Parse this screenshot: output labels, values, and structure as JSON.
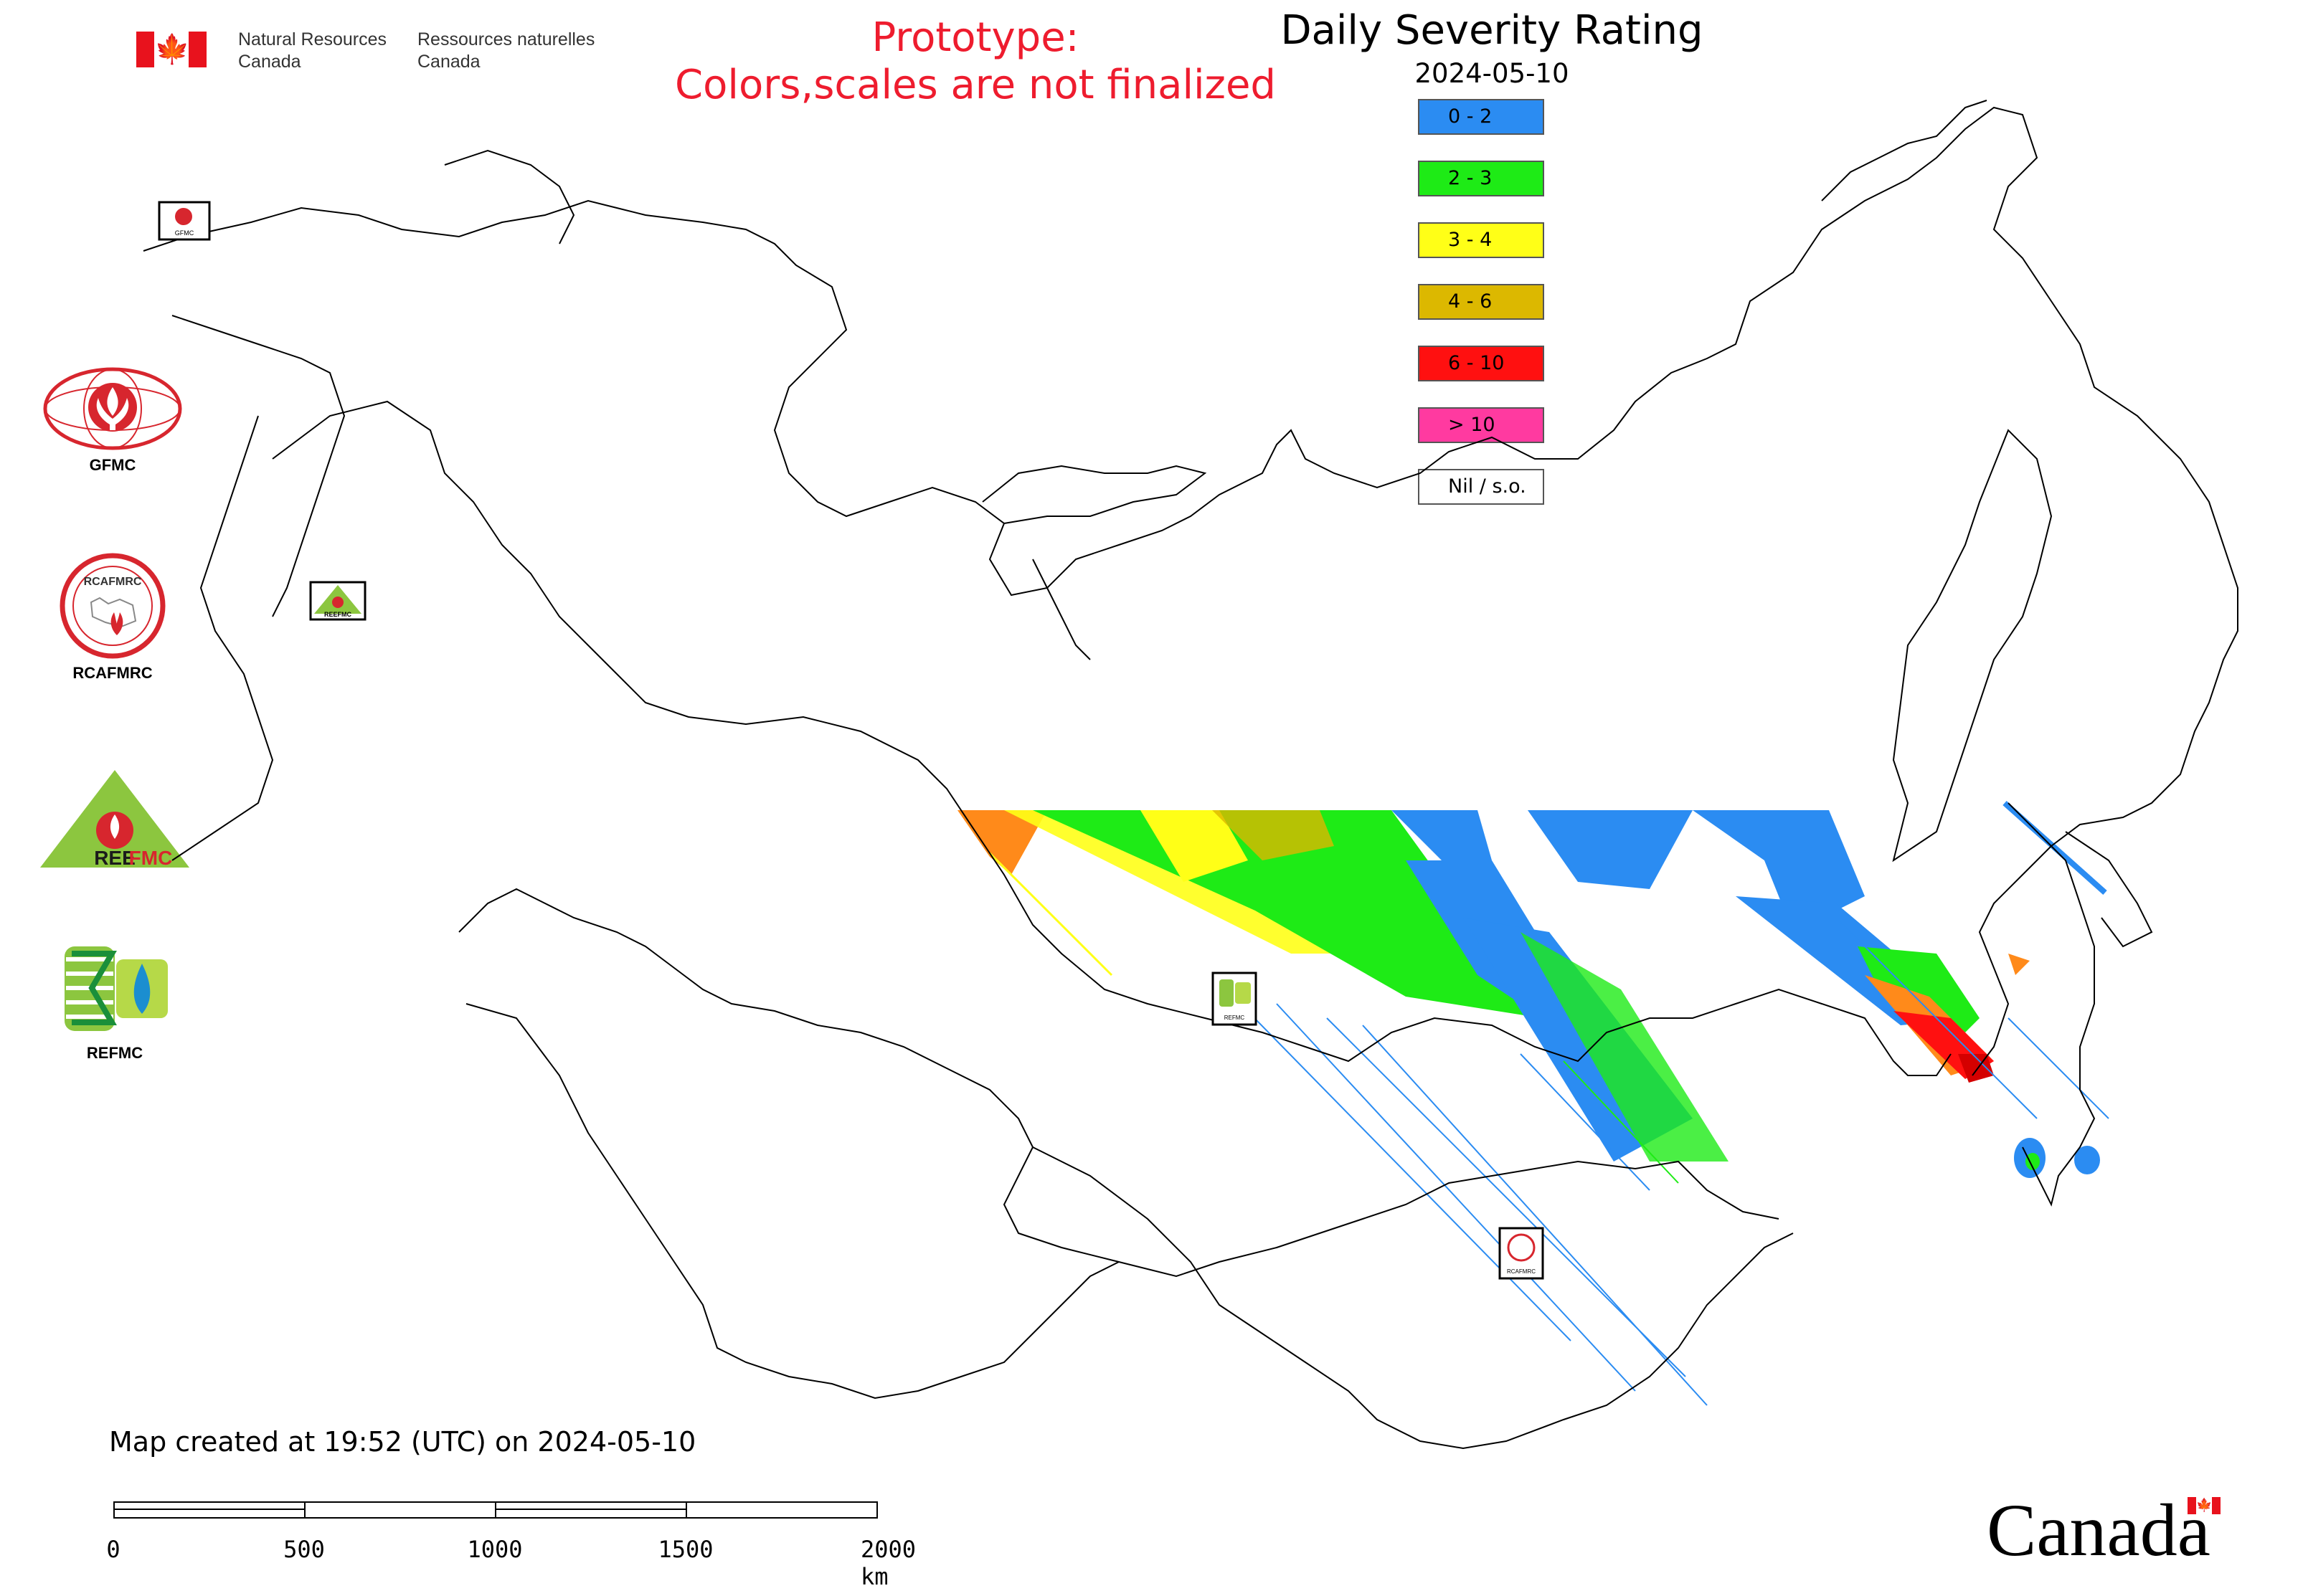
{
  "header": {
    "department_en": [
      "Natural Resources",
      "Canada"
    ],
    "department_fr": [
      "Ressources naturelles",
      "Canada"
    ],
    "prototype_note": [
      "Prototype:",
      "Colors,scales are not finalized"
    ],
    "title": "Daily Severity Rating",
    "date": "2024-05-10"
  },
  "legend": [
    {
      "label": "0 - 2",
      "color": "#2b8cf2"
    },
    {
      "label": "2 - 3",
      "color": "#1eeb16"
    },
    {
      "label": "3 - 4",
      "color": "#ffff17"
    },
    {
      "label": "4 - 6",
      "color": "#dcb800"
    },
    {
      "label": "6 - 10",
      "color": "#ff1010"
    },
    {
      "label": "> 10",
      "color": "#ff3aa0"
    },
    {
      "label": "Nil / s.o.",
      "color": "#ffffff"
    }
  ],
  "agencies": [
    {
      "name": "GFMC",
      "icon": "gfmc-logo"
    },
    {
      "name": "RCAFMRC",
      "icon": "rcafmrc-logo"
    },
    {
      "name": "REEFMC",
      "icon": "reefmc-logo"
    },
    {
      "name": "REFMC",
      "icon": "refmc-logo"
    }
  ],
  "map_marker_labels": {
    "gfmc": "GFMC",
    "reefmc": "REEFMC",
    "refmc": "REFMC",
    "rcafmrc": "RCAFMRC"
  },
  "footer": {
    "created": "Map created at 19:52 (UTC) on 2024-05-10",
    "scale_labels": [
      "0",
      "500",
      "1000",
      "1500",
      "2000 km"
    ],
    "wordmark": "Canada"
  }
}
